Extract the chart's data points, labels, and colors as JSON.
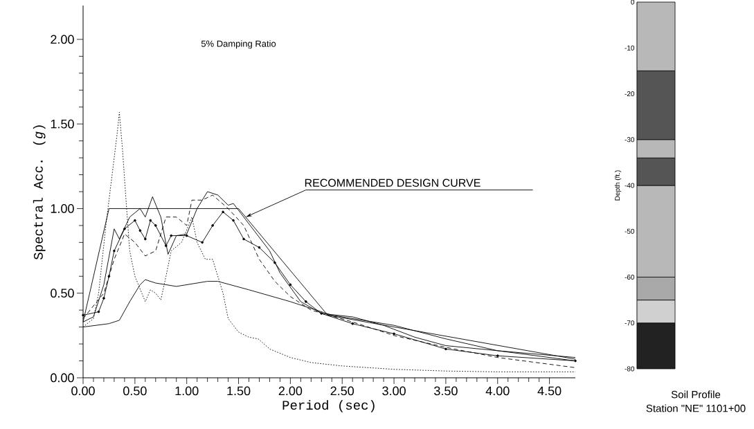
{
  "chart_data": [
    {
      "type": "line",
      "xlabel": "Period (sec)",
      "ylabel": "Spectral Acc. (*g*)",
      "annotations": [
        "5% Damping Ratio",
        {
          "text": "RECOMMENDED DESIGN CURVE",
          "x": 1.57,
          "y": 0.95
        }
      ],
      "xlim": [
        0,
        4.75
      ],
      "ylim": [
        0,
        2.2
      ],
      "xticks": [
        {
          "value": 0,
          "label": "0.00"
        },
        {
          "value": 0.5,
          "label": "0.50"
        },
        {
          "value": 1,
          "label": "1.00"
        },
        {
          "value": 1.5,
          "label": "1.50"
        },
        {
          "value": 2,
          "label": "2.00"
        },
        {
          "value": 2.5,
          "label": "2.50"
        },
        {
          "value": 3,
          "label": "3.00"
        },
        {
          "value": 3.5,
          "label": "3.50"
        },
        {
          "value": 4,
          "label": "4.00"
        },
        {
          "value": 4.5,
          "label": "4.50"
        }
      ],
      "yticks": [
        {
          "value": 0,
          "label": "0.00"
        },
        {
          "value": 0.5,
          "label": "0.50"
        },
        {
          "value": 1,
          "label": "1.00"
        },
        {
          "value": 1.5,
          "label": "1.50"
        },
        {
          "value": 2,
          "label": "2.00"
        }
      ],
      "series": [
        {
          "color": "#000000",
          "line_style": "solid",
          "x": [
            0,
            0.25,
            1.5,
            2.36,
            4.75
          ],
          "values": [
            0.33,
            1.0,
            1.0,
            0.37,
            0.11
          ]
        },
        {
          "color": "#000000",
          "line_style": "dotted",
          "x": [
            0,
            0.1,
            0.15,
            0.22,
            0.28,
            0.33,
            0.35,
            0.38,
            0.42,
            0.45,
            0.5,
            0.6,
            0.65,
            0.7,
            0.75,
            0.8,
            0.85,
            0.95,
            1.05,
            1.1,
            1.18,
            1.25,
            1.35,
            1.4,
            1.5,
            1.6,
            1.69,
            1.8,
            2.0,
            2.2,
            2.5,
            3.0,
            3.5,
            4.0,
            4.75
          ],
          "values": [
            0.3,
            0.35,
            0.5,
            0.9,
            1.2,
            1.45,
            1.57,
            1.35,
            1.0,
            0.75,
            0.6,
            0.45,
            0.52,
            0.5,
            0.46,
            0.6,
            0.75,
            0.8,
            0.95,
            0.8,
            0.7,
            0.7,
            0.5,
            0.35,
            0.27,
            0.24,
            0.23,
            0.17,
            0.12,
            0.09,
            0.07,
            0.05,
            0.04,
            0.035,
            0.035
          ]
        },
        {
          "color": "#000000",
          "line_style": "solid",
          "x": [
            0,
            0.25,
            0.35,
            0.45,
            0.55,
            0.6,
            0.7,
            0.9,
            1.2,
            1.3,
            1.6,
            2.0,
            2.4,
            3.0,
            3.5,
            4.0,
            4.75
          ],
          "values": [
            0.3,
            0.32,
            0.34,
            0.45,
            0.55,
            0.58,
            0.56,
            0.54,
            0.57,
            0.57,
            0.52,
            0.45,
            0.37,
            0.31,
            0.23,
            0.16,
            0.1
          ]
        },
        {
          "color": "#000000",
          "line_style": "solid",
          "marker": "circle",
          "x": [
            0,
            0.15,
            0.2,
            0.25,
            0.3,
            0.4,
            0.5,
            0.55,
            0.6,
            0.65,
            0.7,
            0.8,
            0.85,
            1.0,
            1.15,
            1.25,
            1.35,
            1.45,
            1.55,
            1.7,
            1.85,
            2.0,
            2.15,
            2.3,
            2.6,
            3.0,
            3.5,
            4.0,
            4.75
          ],
          "values": [
            0.37,
            0.39,
            0.47,
            0.6,
            0.75,
            0.88,
            0.93,
            0.87,
            0.82,
            0.93,
            0.9,
            0.78,
            0.84,
            0.84,
            0.8,
            0.9,
            0.98,
            0.93,
            0.82,
            0.77,
            0.68,
            0.55,
            0.45,
            0.38,
            0.32,
            0.26,
            0.17,
            0.13,
            0.1
          ]
        },
        {
          "color": "#000000",
          "line_style": "solid",
          "x": [
            0,
            0.1,
            0.2,
            0.3,
            0.35,
            0.45,
            0.55,
            0.6,
            0.67,
            0.75,
            0.82,
            0.9,
            1.0,
            1.1,
            1.2,
            1.3,
            1.4,
            1.45,
            1.55,
            1.65,
            1.8,
            1.9,
            2.1,
            2.3,
            2.6,
            2.9,
            3.2,
            3.5,
            4.0,
            4.75
          ],
          "values": [
            0.33,
            0.36,
            0.55,
            0.88,
            0.82,
            0.95,
            1.0,
            0.95,
            1.07,
            0.95,
            0.73,
            0.84,
            0.85,
            1.0,
            1.1,
            1.08,
            1.02,
            1.03,
            0.95,
            0.87,
            0.75,
            0.62,
            0.45,
            0.38,
            0.36,
            0.31,
            0.24,
            0.19,
            0.16,
            0.12
          ]
        },
        {
          "color": "#000000",
          "line_style": "dashed",
          "x": [
            0,
            0.2,
            0.3,
            0.4,
            0.5,
            0.6,
            0.7,
            0.8,
            0.9,
            1.0,
            1.05,
            1.15,
            1.25,
            1.4,
            1.55,
            1.7,
            1.85,
            2.0,
            2.2,
            2.6,
            3.0,
            3.5,
            4.0,
            4.75
          ],
          "values": [
            0.35,
            0.5,
            0.7,
            0.85,
            0.8,
            0.72,
            0.75,
            0.95,
            0.95,
            0.9,
            1.05,
            1.05,
            1.08,
            1.0,
            0.9,
            0.7,
            0.57,
            0.48,
            0.4,
            0.33,
            0.25,
            0.18,
            0.12,
            0.06
          ]
        }
      ]
    },
    {
      "type": "bar",
      "stacked": true,
      "title": "Soil Profile",
      "subtitle": "Station \"NE\" 1101+00",
      "ylabel": "Depth (ft.)",
      "categories": [
        null
      ],
      "ylim": [
        -80,
        0
      ],
      "yticks": [
        0,
        -10,
        -20,
        -30,
        -40,
        -50,
        -60,
        -70,
        -80
      ],
      "series": [
        {
          "color": "#b8b8b8",
          "values": [
            -15
          ]
        },
        {
          "color": "#555555",
          "values": [
            -15
          ]
        },
        {
          "color": "#b8b8b8",
          "values": [
            -4
          ]
        },
        {
          "color": "#555555",
          "values": [
            -6
          ]
        },
        {
          "color": "#b8b8b8",
          "values": [
            -20
          ]
        },
        {
          "color": "#a8a8a8",
          "values": [
            -5
          ]
        },
        {
          "color": "#d0d0d0",
          "values": [
            -5
          ]
        },
        {
          "color": "#222222",
          "values": [
            -10
          ]
        }
      ]
    }
  ]
}
